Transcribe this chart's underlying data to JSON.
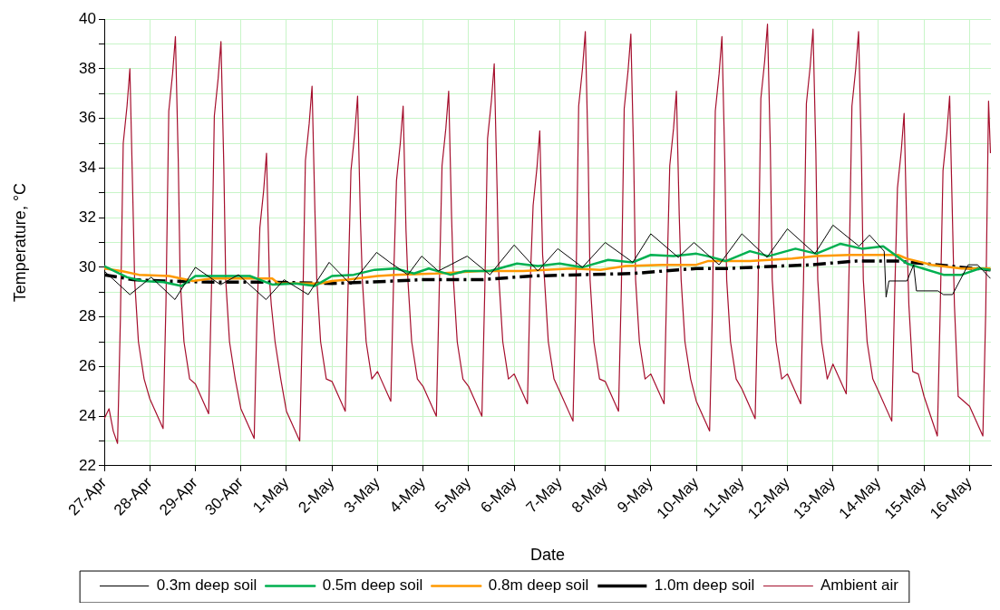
{
  "chart_data": {
    "type": "line",
    "xlabel": "Date",
    "ylabel": "Temperature, °C",
    "xlim": [
      "--04-27",
      "--05-16T11:15"
    ],
    "ylim": [
      22,
      40
    ],
    "xticks": [
      {
        "value": "--04-27",
        "label": "27-Apr"
      },
      {
        "value": "--04-28",
        "label": "28-Apr"
      },
      {
        "value": "--04-29",
        "label": "29-Apr"
      },
      {
        "value": "--04-30",
        "label": "30-Apr"
      },
      {
        "value": "--05-01",
        "label": "1-May"
      },
      {
        "value": "--05-02",
        "label": "2-May"
      },
      {
        "value": "--05-03",
        "label": "3-May"
      },
      {
        "value": "--05-04",
        "label": "4-May"
      },
      {
        "value": "--05-05",
        "label": "5-May"
      },
      {
        "value": "--05-06",
        "label": "6-May"
      },
      {
        "value": "--05-07",
        "label": "7-May"
      },
      {
        "value": "--05-08",
        "label": "8-May"
      },
      {
        "value": "--05-09",
        "label": "9-May"
      },
      {
        "value": "--05-10",
        "label": "10-May"
      },
      {
        "value": "--05-11",
        "label": "11-May"
      },
      {
        "value": "--05-12",
        "label": "12-May"
      },
      {
        "value": "--05-13",
        "label": "13-May"
      },
      {
        "value": "--05-14",
        "label": "14-May"
      },
      {
        "value": "--05-15",
        "label": "15-May"
      },
      {
        "value": "--05-16",
        "label": "16-May"
      }
    ],
    "yticks": [
      22,
      {
        "value": 23,
        "label": null
      },
      24,
      {
        "value": 25,
        "label": null
      },
      26,
      {
        "value": 27,
        "label": null
      },
      28,
      {
        "value": 29,
        "label": null
      },
      30,
      {
        "value": 31,
        "label": null
      },
      32,
      {
        "value": 33,
        "label": null
      },
      34,
      {
        "value": 35,
        "label": null
      },
      36,
      {
        "value": 37,
        "label": null
      },
      38,
      {
        "value": 39,
        "label": null
      },
      40
    ],
    "grid": true,
    "legend": "bottom",
    "marker": "none",
    "series": [
      {
        "name": "0.3m deep soil",
        "color": "#000000",
        "x": [
          "--04-27T00:00",
          "--04-27T13:30",
          "--04-28T00:45",
          "--04-28T13:15",
          "--04-29T00:00",
          "--04-29T13:15",
          "--04-29T22:45",
          "--04-30T13:15",
          "--04-30T22:45",
          "--05-01T11:30",
          "--05-01T22:30",
          "--05-02T10:00",
          "--05-02T23:30",
          "--05-03T06:30",
          "--05-03T16:00",
          "--05-03T23:15",
          "--05-04T08:00",
          "--05-04T23:15",
          "--05-05T11:15",
          "--05-06T00:00",
          "--05-06T12:30",
          "--05-06T23:00",
          "--05-07T12:00",
          "--05-08T00:00",
          "--05-08T14:30",
          "--05-09T00:00",
          "--05-09T14:30",
          "--05-09T22:45",
          "--05-10T12:00",
          "--05-11T00:00",
          "--05-11T13:15",
          "--05-12T00:00",
          "--05-12T14:30",
          "--05-13T00:00",
          "--05-13T13:45",
          "--05-13T19:15",
          "--05-14T03:00",
          "--05-14T04:00",
          "--05-14T05:30",
          "--05-14T15:00",
          "--05-14T18:30",
          "--05-14T20:00",
          "--05-15T07:15",
          "--05-15T10:15",
          "--05-15T15:00",
          "--05-15T23:15",
          "--05-16T04:15",
          "--05-16T11:00"
        ],
        "values": [
          29.85,
          28.9,
          29.6,
          28.7,
          30.0,
          29.3,
          29.7,
          28.7,
          29.5,
          28.9,
          30.2,
          29.3,
          30.6,
          30.2,
          29.7,
          30.45,
          29.85,
          30.45,
          29.7,
          30.9,
          29.85,
          30.75,
          30.0,
          31.0,
          30.2,
          31.35,
          30.4,
          31.0,
          30.1,
          31.35,
          30.4,
          31.55,
          30.55,
          31.7,
          30.85,
          31.3,
          30.65,
          28.8,
          29.45,
          29.45,
          30.1,
          29.05,
          29.05,
          28.9,
          28.9,
          30.1,
          30.1,
          29.55
        ]
      },
      {
        "name": "0.5m deep soil",
        "color": "#00b050",
        "x": [
          "--04-27T00:00",
          "--04-27T12:00",
          "--04-27T20:00",
          "--04-28T07:15",
          "--04-28T16:45",
          "--04-29T00:00",
          "--04-29T12:00",
          "--04-29T20:00",
          "--04-30T04:45",
          "--04-30T16:45",
          "--05-01T04:45",
          "--05-01T15:00",
          "--05-02T00:00",
          "--05-02T11:30",
          "--05-02T22:30",
          "--05-03T09:30",
          "--05-03T19:15",
          "--05-04T03:00",
          "--05-04T14:30",
          "--05-04T22:15",
          "--05-05T11:15",
          "--05-06T01:30",
          "--05-06T12:30",
          "--05-07T00:00",
          "--05-07T12:00",
          "--05-08T01:30",
          "--05-08T14:30",
          "--05-09T00:00",
          "--05-09T12:00",
          "--05-10T00:00",
          "--05-10T06:00",
          "--05-10T15:30",
          "--05-11T04:15",
          "--05-11T14:00",
          "--05-12T04:15",
          "--05-12T15:15",
          "--05-13T04:00",
          "--05-13T15:15",
          "--05-14T02:30",
          "--05-14T15:00",
          "--05-15T10:15",
          "--05-15T19:45",
          "--05-16T05:15",
          "--05-16T11:00"
        ],
        "values": [
          30.05,
          29.6,
          29.45,
          29.4,
          29.25,
          29.65,
          29.65,
          29.65,
          29.65,
          29.3,
          29.35,
          29.25,
          29.65,
          29.7,
          29.9,
          29.95,
          29.75,
          29.95,
          29.7,
          29.85,
          29.85,
          30.15,
          30.05,
          30.15,
          30.0,
          30.3,
          30.2,
          30.5,
          30.45,
          30.55,
          30.45,
          30.25,
          30.65,
          30.45,
          30.75,
          30.55,
          30.95,
          30.75,
          30.85,
          30.15,
          29.7,
          29.7,
          29.95,
          29.9
        ]
      },
      {
        "name": "0.8m deep soil",
        "color": "#ff9900",
        "x": [
          "--04-27T00:00",
          "--04-27T09:00",
          "--04-27T18:15",
          "--04-28T10:15",
          "--04-28T22:45",
          "--04-29T08:30",
          "--04-30T16:30",
          "--04-30T19:45",
          "--05-01T17:45",
          "--05-02T00:00",
          "--05-02T08:15",
          "--05-03T00:00",
          "--05-03T09:30",
          "--05-04T06:30",
          "--05-05T06:30",
          "--05-06T04:45",
          "--05-07T06:15",
          "--05-07T21:30",
          "--05-08T10:45",
          "--05-09T06:00",
          "--05-10T00:00",
          "--05-10T06:00",
          "--05-11T04:15",
          "--05-12T02:30",
          "--05-12T15:15",
          "--05-13T09:00",
          "--05-14T10:15",
          "--05-14T15:00",
          "--05-15T04:00",
          "--05-15T19:45",
          "--05-16T11:00"
        ],
        "values": [
          29.95,
          29.85,
          29.7,
          29.65,
          29.45,
          29.55,
          29.55,
          29.35,
          29.35,
          29.45,
          29.5,
          29.65,
          29.7,
          29.75,
          29.85,
          29.85,
          29.95,
          29.9,
          30.05,
          30.1,
          30.1,
          30.25,
          30.25,
          30.35,
          30.45,
          30.5,
          30.5,
          30.35,
          30.1,
          29.95,
          29.95
        ]
      },
      {
        "name": "1.0m deep soil",
        "color": "#000000",
        "line_style": "dashed",
        "x": [
          "--04-27T00:00",
          "--04-27T15:15",
          "--04-28T07:15",
          "--04-29T08:30",
          "--04-30T16:30",
          "--05-02T00:00",
          "--05-03T09:30",
          "--05-03T22:15",
          "--05-05T06:30",
          "--05-06T09:30",
          "--05-07T09:30",
          "--05-08T14:30",
          "--05-09T14:30",
          "--05-10T00:00",
          "--05-10T15:30",
          "--05-11T20:15",
          "--05-12T12:00",
          "--05-13T12:00",
          "--05-14T10:15",
          "--05-15T07:15",
          "--05-15T19:45",
          "--05-16T11:00"
        ],
        "values": [
          29.7,
          29.5,
          29.45,
          29.4,
          29.4,
          29.35,
          29.45,
          29.5,
          29.5,
          29.65,
          29.7,
          29.75,
          29.9,
          29.95,
          29.95,
          30.05,
          30.1,
          30.25,
          30.25,
          30.1,
          30.0,
          29.9
        ]
      },
      {
        "name": "Ambient air",
        "color": "#a50f2d",
        "x": [
          "--04-27T00:00",
          "--04-27T02:30",
          "--04-27T04:45",
          "--04-27T07:00",
          "--04-27T08:30",
          "--04-27T10:00",
          "--04-27T12:00",
          "--04-27T13:30",
          "--04-27T15:00",
          "--04-27T16:00",
          "--04-27T18:00",
          "--04-27T21:00",
          "--04-28T00:00",
          "--04-28T07:00",
          "--04-28T08:30",
          "--04-28T10:00",
          "--04-28T12:00",
          "--04-28T13:30",
          "--04-28T15:00",
          "--04-28T16:00",
          "--04-28T18:00",
          "--04-28T21:00",
          "--04-29T00:00",
          "--04-29T07:00",
          "--04-29T08:30",
          "--04-29T10:00",
          "--04-29T12:00",
          "--04-29T13:30",
          "--04-29T15:00",
          "--04-29T16:00",
          "--04-29T18:00",
          "--04-29T21:00",
          "--04-30T00:00",
          "--04-30T07:00",
          "--04-30T08:30",
          "--04-30T10:00",
          "--04-30T12:00",
          "--04-30T13:30",
          "--04-30T15:00",
          "--04-30T16:00",
          "--04-30T18:00",
          "--04-30T21:00",
          "--05-01T00:00",
          "--05-01T07:00",
          "--05-01T08:30",
          "--05-01T10:00",
          "--05-01T12:00",
          "--05-01T13:30",
          "--05-01T15:00",
          "--05-01T16:00",
          "--05-01T18:00",
          "--05-01T21:00",
          "--05-02T00:00",
          "--05-02T07:00",
          "--05-02T08:30",
          "--05-02T10:00",
          "--05-02T12:00",
          "--05-02T13:30",
          "--05-02T15:00",
          "--05-02T16:00",
          "--05-02T18:00",
          "--05-02T21:00",
          "--05-03T00:00",
          "--05-03T07:00",
          "--05-03T08:30",
          "--05-03T10:00",
          "--05-03T12:00",
          "--05-03T13:30",
          "--05-03T15:00",
          "--05-03T16:00",
          "--05-03T18:00",
          "--05-03T21:00",
          "--05-04T00:00",
          "--05-04T07:00",
          "--05-04T08:30",
          "--05-04T10:00",
          "--05-04T12:00",
          "--05-04T13:30",
          "--05-04T15:00",
          "--05-04T16:00",
          "--05-04T18:00",
          "--05-04T21:00",
          "--05-05T00:00",
          "--05-05T07:00",
          "--05-05T08:30",
          "--05-05T10:00",
          "--05-05T12:00",
          "--05-05T13:30",
          "--05-05T15:00",
          "--05-05T16:00",
          "--05-05T18:00",
          "--05-05T21:00",
          "--05-06T00:00",
          "--05-06T07:00",
          "--05-06T08:30",
          "--05-06T10:00",
          "--05-06T12:00",
          "--05-06T13:30",
          "--05-06T15:00",
          "--05-06T16:00",
          "--05-06T18:00",
          "--05-06T21:00",
          "--05-07T00:00",
          "--05-07T07:00",
          "--05-07T08:30",
          "--05-07T10:00",
          "--05-07T12:00",
          "--05-07T13:30",
          "--05-07T15:00",
          "--05-07T16:00",
          "--05-07T18:00",
          "--05-07T21:00",
          "--05-08T00:00",
          "--05-08T07:00",
          "--05-08T08:30",
          "--05-08T10:00",
          "--05-08T12:00",
          "--05-08T13:30",
          "--05-08T15:00",
          "--05-08T16:00",
          "--05-08T18:00",
          "--05-08T21:00",
          "--05-09T00:00",
          "--05-09T07:00",
          "--05-09T08:30",
          "--05-09T10:00",
          "--05-09T12:00",
          "--05-09T13:30",
          "--05-09T15:00",
          "--05-09T16:00",
          "--05-09T18:00",
          "--05-09T21:00",
          "--05-10T00:00",
          "--05-10T07:00",
          "--05-10T08:30",
          "--05-10T10:00",
          "--05-10T12:00",
          "--05-10T13:30",
          "--05-10T15:00",
          "--05-10T16:00",
          "--05-10T18:00",
          "--05-10T21:00",
          "--05-11T00:00",
          "--05-11T07:00",
          "--05-11T08:30",
          "--05-11T10:00",
          "--05-11T12:00",
          "--05-11T13:30",
          "--05-11T15:00",
          "--05-11T16:00",
          "--05-11T18:00",
          "--05-11T21:00",
          "--05-12T00:00",
          "--05-12T07:00",
          "--05-12T08:30",
          "--05-12T10:00",
          "--05-12T12:00",
          "--05-12T13:30",
          "--05-12T15:00",
          "--05-12T16:00",
          "--05-12T18:00",
          "--05-12T21:00",
          "--05-13T00:00",
          "--05-13T07:00",
          "--05-13T08:30",
          "--05-13T10:00",
          "--05-13T12:00",
          "--05-13T13:30",
          "--05-13T15:00",
          "--05-13T16:00",
          "--05-13T18:00",
          "--05-13T21:00",
          "--05-14T00:00",
          "--05-14T07:00",
          "--05-14T08:30",
          "--05-14T10:00",
          "--05-14T12:00",
          "--05-14T13:30",
          "--05-14T15:00",
          "--05-14T16:00",
          "--05-14T18:00",
          "--05-14T21:00",
          "--05-15T00:00",
          "--05-15T07:00",
          "--05-15T08:30",
          "--05-15T10:00",
          "--05-15T12:00",
          "--05-15T13:30",
          "--05-15T15:00",
          "--05-15T16:00",
          "--05-15T18:00",
          "--05-15T21:00",
          "--05-16T00:00",
          "--05-16T07:00",
          "--05-16T08:30",
          "--05-16T10:00",
          "--05-16T11:00"
        ],
        "values": [
          23.9,
          24.3,
          23.4,
          22.9,
          27.9,
          35.0,
          36.5,
          38.0,
          33.0,
          29.5,
          27.0,
          25.5,
          24.7,
          23.5,
          28.5,
          36.3,
          37.8,
          39.3,
          34.3,
          29.5,
          27.0,
          25.5,
          25.3,
          24.1,
          29.1,
          36.1,
          37.6,
          39.1,
          34.1,
          29.5,
          27.0,
          25.5,
          24.3,
          23.1,
          28.1,
          31.6,
          33.1,
          34.6,
          29.6,
          28.5,
          27.0,
          25.5,
          24.2,
          23.0,
          28.0,
          34.3,
          35.8,
          37.3,
          32.3,
          29.5,
          27.0,
          25.5,
          25.4,
          24.2,
          29.2,
          33.9,
          35.4,
          36.9,
          31.9,
          29.5,
          27.0,
          25.5,
          25.8,
          24.6,
          29.6,
          33.5,
          35.0,
          36.5,
          31.5,
          29.5,
          27.0,
          25.5,
          25.2,
          24.0,
          29.0,
          34.1,
          35.6,
          37.1,
          32.1,
          29.5,
          27.0,
          25.5,
          25.2,
          24.0,
          29.0,
          35.2,
          36.7,
          38.2,
          33.2,
          29.5,
          27.0,
          25.5,
          25.7,
          24.5,
          29.5,
          32.5,
          34.0,
          35.5,
          30.5,
          29.5,
          27.0,
          25.5,
          25.0,
          23.8,
          28.8,
          36.5,
          38.0,
          39.5,
          34.5,
          29.5,
          27.0,
          25.5,
          25.4,
          24.2,
          29.2,
          36.4,
          37.9,
          39.4,
          34.4,
          29.5,
          27.0,
          25.5,
          25.7,
          24.5,
          29.5,
          34.1,
          35.6,
          37.1,
          32.1,
          29.5,
          27.0,
          25.5,
          24.6,
          23.4,
          28.4,
          36.3,
          37.8,
          39.3,
          34.3,
          29.5,
          27.0,
          25.5,
          25.1,
          23.9,
          28.9,
          36.8,
          38.3,
          39.8,
          34.8,
          29.5,
          27.0,
          25.5,
          25.7,
          24.5,
          29.5,
          36.6,
          38.1,
          39.6,
          34.6,
          29.5,
          27.0,
          25.5,
          26.1,
          24.9,
          29.9,
          36.5,
          38.0,
          39.5,
          34.5,
          29.5,
          27.0,
          25.5,
          25.0,
          23.8,
          28.8,
          33.2,
          34.7,
          36.2,
          31.2,
          28.5,
          25.8,
          25.7,
          24.8,
          23.2,
          28.2,
          33.9,
          35.4,
          36.9,
          31.9,
          28.5,
          24.8,
          24.6,
          24.4,
          23.2,
          28.2,
          36.7,
          34.6
        ]
      }
    ]
  }
}
